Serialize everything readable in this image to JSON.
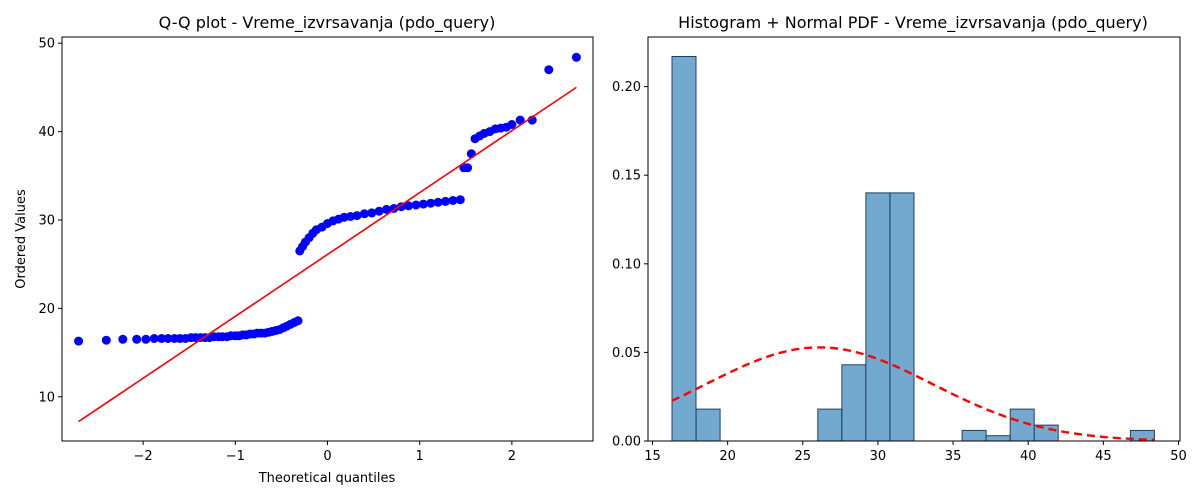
{
  "chart_data": [
    {
      "type": "scatter",
      "title": "Q-Q plot - Vreme_izvrsavanja (pdo_query)",
      "xlabel": "Theoretical quantiles",
      "ylabel": "Ordered Values",
      "xlim": [
        -2.88,
        2.88
      ],
      "ylim": [
        5,
        50.7
      ],
      "xticks": [
        -2,
        -1,
        0,
        1,
        2
      ],
      "xtick_labels": [
        "−2",
        "−1",
        "0",
        "1",
        "2"
      ],
      "yticks": [
        10,
        20,
        30,
        40,
        50
      ],
      "ytick_labels": [
        "10",
        "20",
        "30",
        "40",
        "50"
      ],
      "grid": false,
      "point_color": "#0000ff",
      "line_color": "#ff0000",
      "fit_line": {
        "x": [
          -2.7,
          2.7
        ],
        "y": [
          7.2,
          45.0
        ]
      },
      "series": [
        {
          "points": [
            [
              -2.7,
              16.3
            ],
            [
              -2.4,
              16.4
            ],
            [
              -2.22,
              16.5
            ],
            [
              -2.07,
              16.5
            ],
            [
              -1.97,
              16.5
            ],
            [
              -1.88,
              16.6
            ],
            [
              -1.8,
              16.6
            ],
            [
              -1.73,
              16.6
            ],
            [
              -1.66,
              16.6
            ],
            [
              -1.6,
              16.6
            ],
            [
              -1.54,
              16.6
            ],
            [
              -1.48,
              16.7
            ],
            [
              -1.43,
              16.7
            ],
            [
              -1.38,
              16.7
            ],
            [
              -1.33,
              16.7
            ],
            [
              -1.28,
              16.7
            ],
            [
              -1.23,
              16.8
            ],
            [
              -1.18,
              16.8
            ],
            [
              -1.14,
              16.8
            ],
            [
              -1.09,
              16.8
            ],
            [
              -1.05,
              16.9
            ],
            [
              -1.0,
              16.9
            ],
            [
              -0.96,
              16.9
            ],
            [
              -0.92,
              17.0
            ],
            [
              -0.88,
              17.0
            ],
            [
              -0.84,
              17.1
            ],
            [
              -0.8,
              17.1
            ],
            [
              -0.76,
              17.2
            ],
            [
              -0.72,
              17.2
            ],
            [
              -0.68,
              17.2
            ],
            [
              -0.64,
              17.3
            ],
            [
              -0.6,
              17.4
            ],
            [
              -0.56,
              17.5
            ],
            [
              -0.52,
              17.6
            ],
            [
              -0.48,
              17.8
            ],
            [
              -0.44,
              18.0
            ],
            [
              -0.4,
              18.2
            ],
            [
              -0.36,
              18.4
            ],
            [
              -0.32,
              18.6
            ],
            [
              -0.3,
              26.5
            ],
            [
              -0.27,
              27.0
            ],
            [
              -0.24,
              27.5
            ],
            [
              -0.2,
              28.0
            ],
            [
              -0.16,
              28.5
            ],
            [
              -0.12,
              28.9
            ],
            [
              -0.06,
              29.2
            ],
            [
              0.0,
              29.6
            ],
            [
              0.06,
              29.9
            ],
            [
              0.12,
              30.1
            ],
            [
              0.18,
              30.3
            ],
            [
              0.25,
              30.4
            ],
            [
              0.32,
              30.5
            ],
            [
              0.4,
              30.7
            ],
            [
              0.48,
              30.8
            ],
            [
              0.56,
              31.0
            ],
            [
              0.64,
              31.2
            ],
            [
              0.72,
              31.3
            ],
            [
              0.8,
              31.5
            ],
            [
              0.88,
              31.6
            ],
            [
              0.96,
              31.7
            ],
            [
              1.04,
              31.8
            ],
            [
              1.12,
              31.9
            ],
            [
              1.2,
              32.0
            ],
            [
              1.28,
              32.1
            ],
            [
              1.36,
              32.2
            ],
            [
              1.44,
              32.3
            ],
            [
              1.48,
              35.9
            ],
            [
              1.52,
              35.9
            ],
            [
              1.56,
              37.5
            ],
            [
              1.6,
              39.2
            ],
            [
              1.65,
              39.5
            ],
            [
              1.7,
              39.8
            ],
            [
              1.76,
              40.0
            ],
            [
              1.82,
              40.3
            ],
            [
              1.88,
              40.4
            ],
            [
              1.94,
              40.5
            ],
            [
              2.0,
              40.8
            ],
            [
              2.09,
              41.3
            ],
            [
              2.22,
              41.3
            ],
            [
              2.4,
              47.0
            ],
            [
              2.7,
              48.4
            ]
          ]
        }
      ]
    },
    {
      "type": "bar",
      "title": "Histogram + Normal PDF - Vreme_izvrsavanja (pdo_query)",
      "xlabel": "",
      "ylabel": "",
      "xlim": [
        14.7,
        50.1
      ],
      "ylim": [
        0,
        0.228
      ],
      "xticks": [
        15,
        20,
        25,
        30,
        35,
        40,
        45,
        50
      ],
      "xtick_labels": [
        "15",
        "20",
        "25",
        "30",
        "35",
        "40",
        "45",
        "50"
      ],
      "yticks": [
        0.0,
        0.05,
        0.1,
        0.15,
        0.2
      ],
      "ytick_labels": [
        "0.00",
        "0.05",
        "0.10",
        "0.15",
        "0.20"
      ],
      "grid": false,
      "bar_color": "#74a9cf",
      "bar_edge_color": "#1f3f5f",
      "pdf_color": "#ff0000",
      "bins": [
        {
          "x0": 16.3,
          "x1": 17.9,
          "density": 0.217
        },
        {
          "x0": 17.9,
          "x1": 19.5,
          "density": 0.018
        },
        {
          "x0": 19.5,
          "x1": 21.1,
          "density": 0.0
        },
        {
          "x0": 21.1,
          "x1": 22.7,
          "density": 0.0
        },
        {
          "x0": 22.7,
          "x1": 24.4,
          "density": 0.0
        },
        {
          "x0": 24.4,
          "x1": 26.0,
          "density": 0.0
        },
        {
          "x0": 26.0,
          "x1": 27.6,
          "density": 0.018
        },
        {
          "x0": 27.6,
          "x1": 29.2,
          "density": 0.043
        },
        {
          "x0": 29.2,
          "x1": 30.8,
          "density": 0.14
        },
        {
          "x0": 30.8,
          "x1": 32.4,
          "density": 0.14
        },
        {
          "x0": 32.4,
          "x1": 34.0,
          "density": 0.0
        },
        {
          "x0": 34.0,
          "x1": 35.6,
          "density": 0.0
        },
        {
          "x0": 35.6,
          "x1": 37.2,
          "density": 0.006
        },
        {
          "x0": 37.2,
          "x1": 38.8,
          "density": 0.003
        },
        {
          "x0": 38.8,
          "x1": 40.4,
          "density": 0.018
        },
        {
          "x0": 40.4,
          "x1": 42.0,
          "density": 0.009
        },
        {
          "x0": 42.0,
          "x1": 43.6,
          "density": 0.0
        },
        {
          "x0": 43.6,
          "x1": 45.2,
          "density": 0.0
        },
        {
          "x0": 45.2,
          "x1": 46.8,
          "density": 0.0
        },
        {
          "x0": 46.8,
          "x1": 48.4,
          "density": 0.006
        }
      ],
      "normal_pdf": {
        "mean": 26.1,
        "std": 7.55,
        "x_range": [
          16.3,
          48.4
        ]
      }
    }
  ]
}
